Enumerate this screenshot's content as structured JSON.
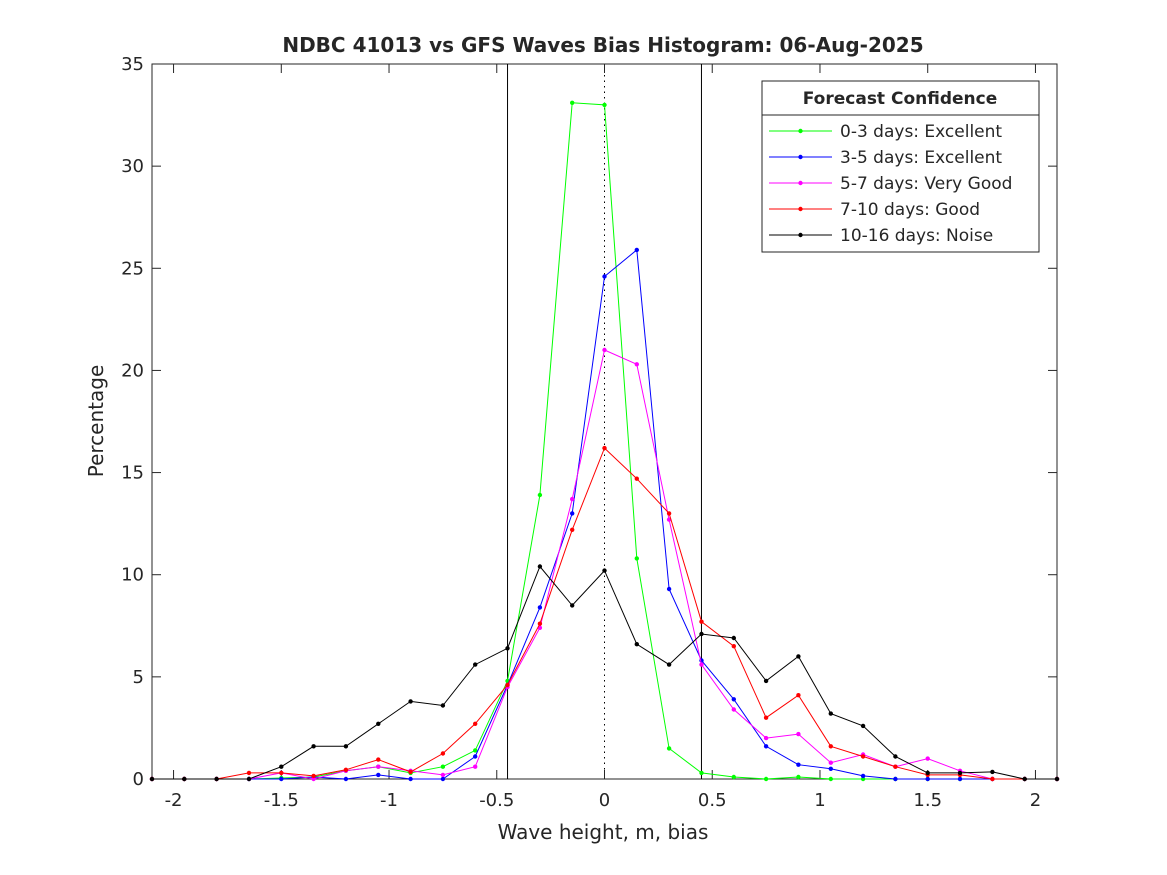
{
  "chart_data": {
    "type": "line",
    "title": "NDBC 41013 vs GFS Waves Bias Histogram: 06-Aug-2025",
    "xlabel": "Wave height, m, bias",
    "ylabel": "Percentage",
    "xlim": [
      -2.1,
      2.1
    ],
    "ylim": [
      0,
      35
    ],
    "xticks": [
      -2,
      -1.5,
      -1,
      -0.5,
      0,
      0.5,
      1,
      1.5,
      2
    ],
    "yticks": [
      0,
      5,
      10,
      15,
      20,
      25,
      30,
      35
    ],
    "xtick_labels": [
      "-2",
      "-1.5",
      "-1",
      "-0.5",
      "0",
      "0.5",
      "1",
      "1.5",
      "2"
    ],
    "ytick_labels": [
      "0",
      "5",
      "10",
      "15",
      "20",
      "25",
      "30",
      "35"
    ],
    "grid": false,
    "vertical_lines": [
      {
        "x": -0.45,
        "style": "solid"
      },
      {
        "x": 0,
        "style": "dotted"
      },
      {
        "x": 0.45,
        "style": "solid"
      }
    ],
    "legend_title": "Forecast Confidence",
    "legend_position": "top-right",
    "x": [
      -2.1,
      -1.95,
      -1.8,
      -1.65,
      -1.5,
      -1.35,
      -1.2,
      -1.05,
      -0.9,
      -0.75,
      -0.6,
      -0.45,
      -0.3,
      -0.15,
      0,
      0.15,
      0.3,
      0.45,
      0.6,
      0.75,
      0.9,
      1.05,
      1.2,
      1.35,
      1.5,
      1.65,
      1.8,
      1.95,
      2.1
    ],
    "series": [
      {
        "name": "0-3 days: Excellent",
        "color": "#00ff00",
        "values": [
          0,
          0,
          0,
          0,
          0.05,
          0.1,
          0.4,
          0.6,
          0.3,
          0.6,
          1.4,
          4.8,
          13.9,
          33.1,
          33.0,
          10.8,
          1.5,
          0.3,
          0.1,
          0,
          0.1,
          0,
          0,
          0,
          0,
          0,
          0,
          0,
          0
        ]
      },
      {
        "name": "3-5 days: Excellent",
        "color": "#0000ff",
        "values": [
          0,
          0,
          0,
          0,
          0,
          0.1,
          0,
          0.2,
          0,
          0,
          1.1,
          4.6,
          8.4,
          13.0,
          24.6,
          25.9,
          9.3,
          5.8,
          3.9,
          1.6,
          0.7,
          0.5,
          0.15,
          0,
          0,
          0,
          0,
          0,
          0
        ]
      },
      {
        "name": "5-7 days: Very Good",
        "color": "#ff00ff",
        "values": [
          0,
          0,
          0,
          0,
          0.3,
          0,
          0.4,
          0.6,
          0.4,
          0.2,
          0.6,
          4.5,
          7.4,
          13.7,
          21.0,
          20.3,
          12.7,
          5.6,
          3.4,
          2.0,
          2.2,
          0.8,
          1.2,
          0.6,
          1.0,
          0.4,
          0,
          0,
          0
        ]
      },
      {
        "name": "7-10 days: Good",
        "color": "#ff0000",
        "values": [
          0,
          0,
          0,
          0.3,
          0.3,
          0.15,
          0.45,
          0.95,
          0.35,
          1.25,
          2.7,
          4.6,
          7.6,
          12.2,
          16.2,
          14.7,
          13.0,
          7.7,
          6.5,
          3.0,
          4.1,
          1.6,
          1.1,
          0.6,
          0.2,
          0.2,
          0,
          0,
          0
        ]
      },
      {
        "name": "10-16 days: Noise",
        "color": "#000000",
        "values": [
          0,
          0,
          0,
          0,
          0.6,
          1.6,
          1.6,
          2.7,
          3.8,
          3.6,
          5.6,
          6.4,
          10.4,
          8.5,
          10.2,
          6.6,
          5.6,
          7.1,
          6.9,
          4.8,
          6.0,
          3.2,
          2.6,
          1.1,
          0.3,
          0.3,
          0.35,
          0,
          0
        ]
      }
    ]
  }
}
